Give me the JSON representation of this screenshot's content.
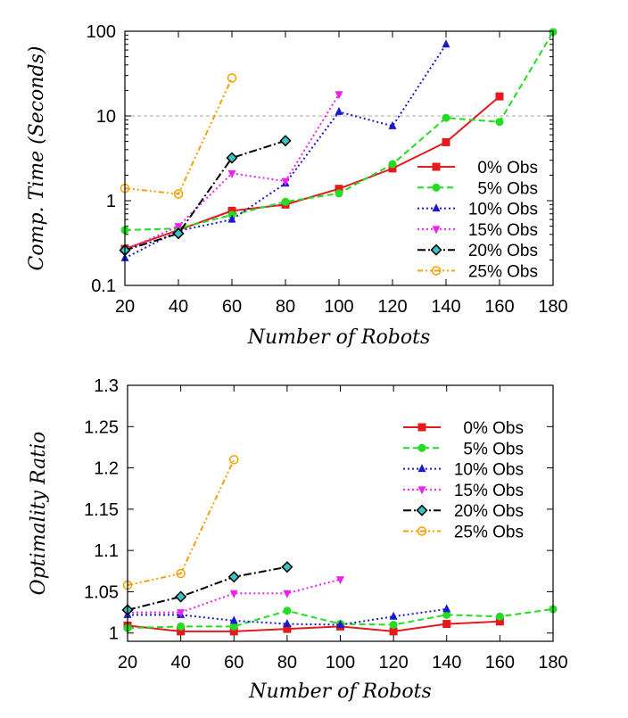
{
  "chart_data": [
    {
      "type": "line",
      "title": "",
      "xlabel": "Number of Robots",
      "ylabel": "Comp. Time (Seconds)",
      "yscale": "log",
      "xlim": [
        20,
        180
      ],
      "ylim": [
        0.1,
        100
      ],
      "x_ticks": [
        20,
        40,
        60,
        80,
        100,
        120,
        140,
        160,
        180
      ],
      "y_ticks": [
        0.1,
        1,
        10,
        100
      ],
      "y_tick_labels": [
        "0.1",
        "1",
        "10",
        "100"
      ],
      "reference_line": 10,
      "grid": false,
      "legend_position": "bottom-right",
      "series": [
        {
          "name": "0% Obs",
          "color": "#e41a1c",
          "marker": "square",
          "dash": "solid",
          "x": [
            20,
            40,
            60,
            80,
            100,
            120,
            140,
            160
          ],
          "y": [
            0.27,
            0.45,
            0.76,
            0.9,
            1.38,
            2.4,
            4.9,
            17.0
          ]
        },
        {
          "name": "5% Obs",
          "color": "#22dd22",
          "marker": "circle",
          "dash": "dash",
          "x": [
            20,
            40,
            60,
            80,
            100,
            120,
            140,
            160,
            180
          ],
          "y": [
            0.45,
            0.47,
            0.68,
            0.97,
            1.22,
            2.7,
            9.5,
            8.5,
            98
          ]
        },
        {
          "name": "10% Obs",
          "color": "#1a1acc",
          "marker": "triangle-up",
          "dash": "dot",
          "x": [
            20,
            40,
            60,
            80,
            100,
            120,
            140
          ],
          "y": [
            0.21,
            0.44,
            0.6,
            1.6,
            11.2,
            7.6,
            70
          ]
        },
        {
          "name": "15% Obs",
          "color": "#ee22ee",
          "marker": "triangle-down",
          "dash": "dot",
          "x": [
            20,
            40,
            60,
            80,
            100
          ],
          "y": [
            0.26,
            0.5,
            2.1,
            1.7,
            18.0
          ]
        },
        {
          "name": "20% Obs",
          "color": "#000000",
          "marker": "diamond",
          "dash": "dashdot",
          "x": [
            20,
            40,
            60,
            80
          ],
          "y": [
            0.26,
            0.41,
            3.2,
            5.1
          ]
        },
        {
          "name": "25% Obs",
          "color": "#f5a000",
          "marker": "open-circle",
          "dash": "dashdotdot",
          "x": [
            20,
            40,
            60
          ],
          "y": [
            1.4,
            1.2,
            28
          ]
        }
      ]
    },
    {
      "type": "line",
      "title": "",
      "xlabel": "Number of Robots",
      "ylabel": "Optimality Ratio",
      "yscale": "linear",
      "xlim": [
        20,
        180
      ],
      "ylim": [
        0.99,
        1.3
      ],
      "x_ticks": [
        20,
        40,
        60,
        80,
        100,
        120,
        140,
        160,
        180
      ],
      "y_ticks": [
        1,
        1.05,
        1.1,
        1.15,
        1.2,
        1.25,
        1.3
      ],
      "y_tick_labels": [
        "1",
        "1.05",
        "1.1",
        "1.15",
        "1.2",
        "1.25",
        "1.3"
      ],
      "grid": false,
      "legend_position": "top-right",
      "series": [
        {
          "name": "0% Obs",
          "color": "#e41a1c",
          "marker": "square",
          "dash": "solid",
          "x": [
            20,
            40,
            60,
            80,
            100,
            120,
            140,
            160
          ],
          "y": [
            1.009,
            1.002,
            1.002,
            1.005,
            1.008,
            1.002,
            1.011,
            1.014
          ]
        },
        {
          "name": "5% Obs",
          "color": "#22dd22",
          "marker": "circle",
          "dash": "dash",
          "x": [
            20,
            40,
            60,
            80,
            100,
            120,
            140,
            160,
            180
          ],
          "y": [
            1.006,
            1.008,
            1.008,
            1.027,
            1.011,
            1.01,
            1.022,
            1.02,
            1.029
          ]
        },
        {
          "name": "10% Obs",
          "color": "#1a1acc",
          "marker": "triangle-up",
          "dash": "dot",
          "x": [
            20,
            40,
            60,
            80,
            100,
            120,
            140
          ],
          "y": [
            1.022,
            1.022,
            1.015,
            1.011,
            1.01,
            1.02,
            1.029
          ]
        },
        {
          "name": "15% Obs",
          "color": "#ee22ee",
          "marker": "triangle-down",
          "dash": "dot",
          "x": [
            20,
            40,
            60,
            80,
            100
          ],
          "y": [
            1.025,
            1.025,
            1.048,
            1.048,
            1.065
          ]
        },
        {
          "name": "20% Obs",
          "color": "#000000",
          "marker": "diamond",
          "dash": "dashdot",
          "x": [
            20,
            40,
            60,
            80
          ],
          "y": [
            1.028,
            1.044,
            1.068,
            1.08
          ]
        },
        {
          "name": "25% Obs",
          "color": "#f5a000",
          "marker": "open-circle",
          "dash": "dashdotdot",
          "x": [
            20,
            40,
            60
          ],
          "y": [
            1.058,
            1.072,
            1.21
          ]
        }
      ]
    }
  ]
}
